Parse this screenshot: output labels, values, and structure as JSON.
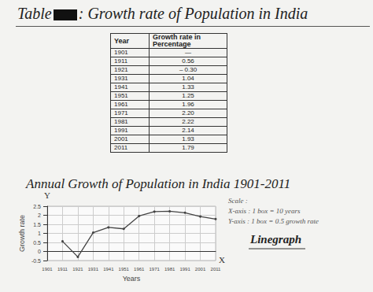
{
  "header": {
    "prefix": "Table",
    "title": ": Growth rate of Population in India"
  },
  "table": {
    "columns": [
      "Year",
      "Growth rate in Percentage"
    ],
    "rows": [
      [
        "1901",
        "—"
      ],
      [
        "1911",
        "0.56"
      ],
      [
        "1921",
        "– 0.30"
      ],
      [
        "1931",
        "1.04"
      ],
      [
        "1941",
        "1.33"
      ],
      [
        "1951",
        "1.25"
      ],
      [
        "1961",
        "1.96"
      ],
      [
        "1971",
        "2.20"
      ],
      [
        "1981",
        "2.22"
      ],
      [
        "1991",
        "2.14"
      ],
      [
        "2001",
        "1.93"
      ],
      [
        "2011",
        "1.79"
      ]
    ]
  },
  "chart_data": {
    "type": "line",
    "title": "Annual Growth of Population in India 1901-2011",
    "x_label": "Years",
    "y_label": "Growth rate",
    "x_axis_letter": "X",
    "y_axis_letter": "Y",
    "categories": [
      "1901",
      "1911",
      "1921",
      "1931",
      "1941",
      "1951",
      "1961",
      "1971",
      "1981",
      "1991",
      "2001",
      "2011"
    ],
    "values": [
      null,
      0.56,
      -0.3,
      1.04,
      1.33,
      1.25,
      1.96,
      2.2,
      2.22,
      2.14,
      1.93,
      1.79
    ],
    "ylim": [
      -0.5,
      2.5
    ],
    "yticks": [
      -0.5,
      0,
      0.5,
      1,
      1.5,
      2,
      2.5
    ],
    "grid": true,
    "color": "#444444",
    "marker": "circle",
    "scale_note": [
      "Scale :",
      "X-axis : 1 box = 10 years",
      "Y-axis : 1 box = 0.5 growth rate"
    ],
    "annotation": "Linegraph"
  }
}
